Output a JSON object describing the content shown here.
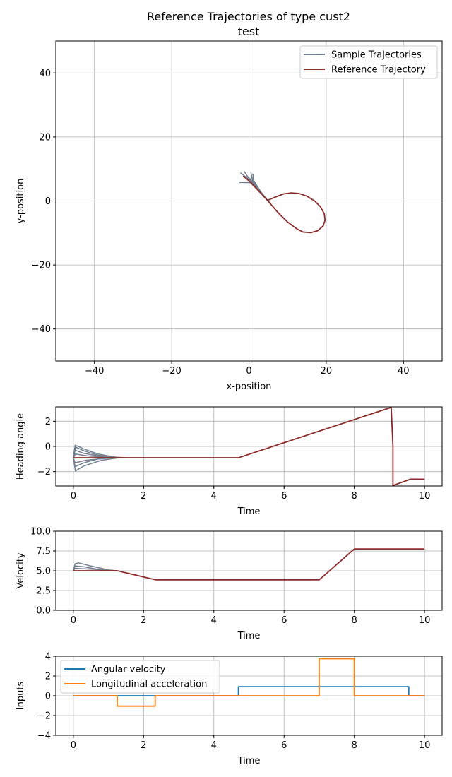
{
  "figure": {
    "title_line1": "Reference Trajectories of type cust2",
    "title_line2": "test"
  },
  "chart_data": [
    {
      "type": "line",
      "xlabel": "x-position",
      "ylabel": "y-position",
      "xlim": [
        -50,
        50
      ],
      "ylim": [
        -50,
        50
      ],
      "xticks": [
        -40,
        -20,
        0,
        20,
        40
      ],
      "yticks": [
        -40,
        -20,
        0,
        20,
        40
      ],
      "grid": true,
      "legend": "top-right",
      "colors": {
        "sample": "#708090",
        "reference": "#8b2b2b"
      },
      "series": [
        {
          "name": "Sample Trajectories",
          "paths": [
            [
              [
                -2.5,
                5.8
              ],
              [
                0.5,
                5.7
              ],
              [
                2.5,
                3.5
              ],
              [
                4.8,
                0.2
              ]
            ],
            [
              [
                -2.2,
                8.8
              ],
              [
                -0.5,
                7.2
              ],
              [
                2.0,
                4.0
              ],
              [
                4.8,
                0.2
              ]
            ],
            [
              [
                -1.2,
                9.2
              ],
              [
                0.0,
                7.0
              ],
              [
                2.2,
                3.8
              ],
              [
                4.8,
                0.2
              ]
            ],
            [
              [
                0.5,
                9.0
              ],
              [
                0.8,
                7.0
              ],
              [
                2.5,
                3.6
              ],
              [
                4.8,
                0.2
              ]
            ],
            [
              [
                1.0,
                8.5
              ],
              [
                1.2,
                6.5
              ],
              [
                3.0,
                3.0
              ],
              [
                4.8,
                0.2
              ]
            ],
            [
              [
                0.8,
                7.5
              ],
              [
                1.0,
                6.2
              ],
              [
                2.8,
                3.2
              ],
              [
                4.8,
                0.2
              ]
            ],
            [
              [
                -0.5,
                7.8
              ],
              [
                0.4,
                6.8
              ],
              [
                2.4,
                3.8
              ],
              [
                4.8,
                0.2
              ]
            ]
          ]
        },
        {
          "name": "Reference Trajectory",
          "points": [
            [
              -1.5,
              7.8
            ],
            [
              0.0,
              6.3
            ],
            [
              2.0,
              3.8
            ],
            [
              4.8,
              0.2
            ],
            [
              7.0,
              1.3
            ],
            [
              9.0,
              2.2
            ],
            [
              11.0,
              2.5
            ],
            [
              13.0,
              2.3
            ],
            [
              15.0,
              1.5
            ],
            [
              17.0,
              0.0
            ],
            [
              18.5,
              -1.8
            ],
            [
              19.5,
              -4.0
            ],
            [
              19.7,
              -6.0
            ],
            [
              19.2,
              -7.8
            ],
            [
              17.8,
              -9.3
            ],
            [
              16.0,
              -9.9
            ],
            [
              14.0,
              -9.7
            ],
            [
              12.5,
              -8.8
            ],
            [
              10.0,
              -6.6
            ],
            [
              7.5,
              -3.6
            ],
            [
              4.8,
              0.2
            ]
          ]
        }
      ]
    },
    {
      "type": "line",
      "xlabel": "Time",
      "ylabel": "Heading angle",
      "xlim": [
        -0.5,
        10.5
      ],
      "ylim": [
        -3.14,
        3.14
      ],
      "xticks": [
        0,
        2,
        4,
        6,
        8,
        10
      ],
      "yticks": [
        -2,
        0,
        2
      ],
      "grid": true,
      "colors": {
        "sample": "#708090",
        "reference": "#8b2b2b"
      },
      "series": [
        {
          "name": "",
          "kind": "sample",
          "paths": [
            [
              [
                0,
                -0.9
              ],
              [
                0.05,
                0.1
              ],
              [
                0.3,
                -0.2
              ],
              [
                0.7,
                -0.6
              ],
              [
                1.2,
                -0.85
              ],
              [
                1.5,
                -0.9
              ]
            ],
            [
              [
                0,
                -0.9
              ],
              [
                0.06,
                -0.05
              ],
              [
                0.3,
                -0.35
              ],
              [
                0.7,
                -0.7
              ],
              [
                1.2,
                -0.88
              ]
            ],
            [
              [
                0,
                -0.9
              ],
              [
                0.05,
                -0.3
              ],
              [
                0.3,
                -0.55
              ],
              [
                0.8,
                -0.8
              ],
              [
                1.2,
                -0.9
              ]
            ],
            [
              [
                0,
                -0.9
              ],
              [
                0.05,
                -1.6
              ],
              [
                0.3,
                -1.3
              ],
              [
                0.7,
                -1.0
              ],
              [
                1.1,
                -0.9
              ]
            ],
            [
              [
                0,
                -0.9
              ],
              [
                0.06,
                -1.95
              ],
              [
                0.3,
                -1.55
              ],
              [
                0.8,
                -1.1
              ],
              [
                1.3,
                -0.9
              ]
            ],
            [
              [
                0,
                -0.9
              ],
              [
                0.05,
                -1.3
              ],
              [
                0.35,
                -1.1
              ],
              [
                0.9,
                -0.95
              ]
            ],
            [
              [
                0,
                -0.9
              ],
              [
                0.06,
                -0.6
              ],
              [
                0.4,
                -0.75
              ],
              [
                1.0,
                -0.88
              ]
            ]
          ]
        },
        {
          "name": "",
          "kind": "reference",
          "points": [
            [
              0,
              -0.9
            ],
            [
              4.7,
              -0.9
            ],
            [
              9.05,
              3.1
            ],
            [
              9.1,
              0.0
            ],
            [
              9.1,
              -3.1
            ],
            [
              9.6,
              -2.6
            ],
            [
              10.0,
              -2.6
            ]
          ]
        }
      ]
    },
    {
      "type": "line",
      "xlabel": "Time",
      "ylabel": "Velocity",
      "xlim": [
        -0.5,
        10.5
      ],
      "ylim": [
        0,
        10
      ],
      "xticks": [
        0,
        2,
        4,
        6,
        8,
        10
      ],
      "yticks": [
        "0.0",
        "2.5",
        "5.0",
        "7.5",
        "10.0"
      ],
      "grid": true,
      "colors": {
        "sample": "#708090",
        "reference": "#8b2b2b"
      },
      "series": [
        {
          "name": "",
          "kind": "sample",
          "paths": [
            [
              [
                0,
                5.0
              ],
              [
                0.05,
                5.9
              ],
              [
                0.15,
                6.0
              ],
              [
                0.5,
                5.6
              ],
              [
                1.0,
                5.1
              ],
              [
                1.25,
                5.0
              ]
            ],
            [
              [
                0,
                5.0
              ],
              [
                0.05,
                5.6
              ],
              [
                0.3,
                5.5
              ],
              [
                0.8,
                5.1
              ],
              [
                1.25,
                5.0
              ]
            ],
            [
              [
                0,
                5.0
              ],
              [
                0.05,
                5.3
              ],
              [
                0.5,
                5.2
              ],
              [
                1.25,
                5.0
              ]
            ]
          ]
        },
        {
          "name": "",
          "kind": "reference",
          "points": [
            [
              0,
              5.0
            ],
            [
              1.25,
              5.0
            ],
            [
              2.35,
              3.85
            ],
            [
              7.0,
              3.85
            ],
            [
              8.0,
              7.75
            ],
            [
              10.0,
              7.75
            ]
          ]
        }
      ]
    },
    {
      "type": "line",
      "xlabel": "Time",
      "ylabel": "Inputs",
      "xlim": [
        -0.5,
        10.5
      ],
      "ylim": [
        -4,
        4
      ],
      "xticks": [
        0,
        2,
        4,
        6,
        8,
        10
      ],
      "yticks": [
        -4,
        -2,
        0,
        2,
        4
      ],
      "grid": true,
      "legend": "top-left",
      "series": [
        {
          "name": "Angular velocity",
          "color": "#1f77b4",
          "points": [
            [
              0,
              0
            ],
            [
              4.7,
              0
            ],
            [
              4.7,
              0.92
            ],
            [
              9.55,
              0.92
            ],
            [
              9.55,
              0
            ],
            [
              10.0,
              0
            ]
          ]
        },
        {
          "name": "Longitudinal acceleration",
          "color": "#ff7f0e",
          "points": [
            [
              0,
              0
            ],
            [
              1.25,
              0
            ],
            [
              1.25,
              -1.05
            ],
            [
              2.33,
              -1.05
            ],
            [
              2.33,
              0
            ],
            [
              7.0,
              0
            ],
            [
              7.0,
              3.75
            ],
            [
              8.0,
              3.75
            ],
            [
              8.0,
              0
            ],
            [
              10.0,
              0
            ]
          ]
        }
      ]
    }
  ]
}
